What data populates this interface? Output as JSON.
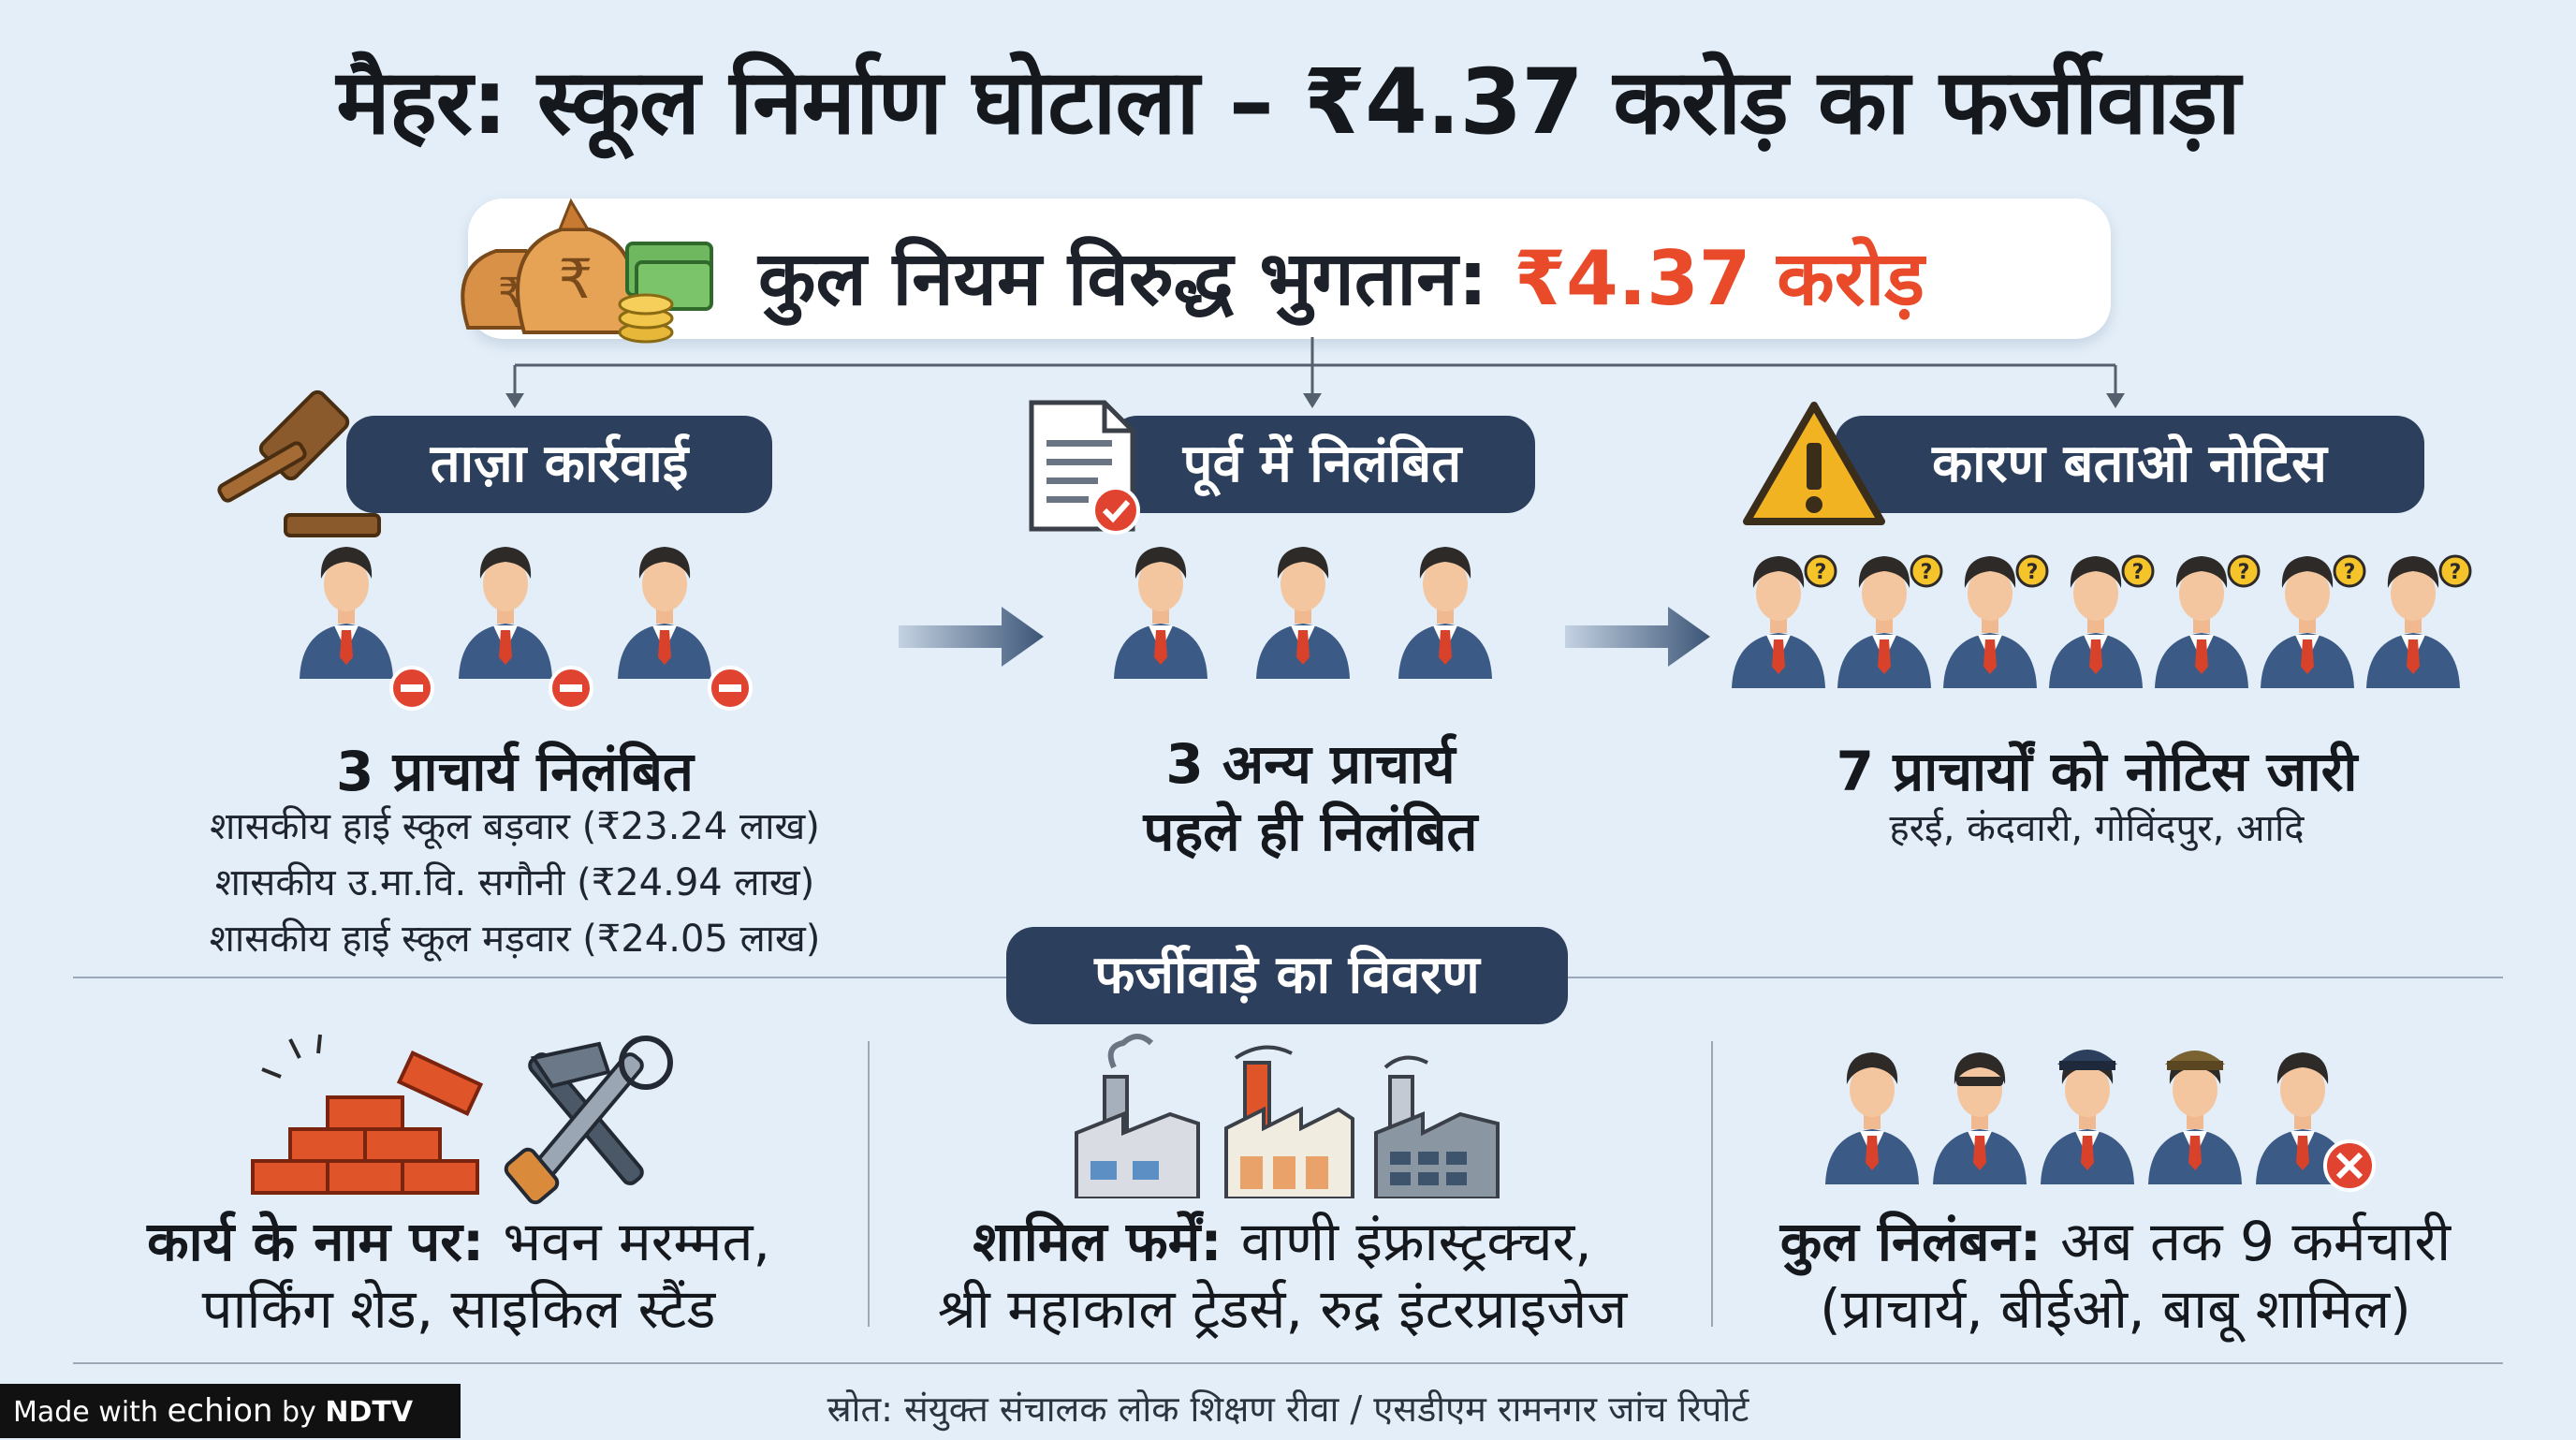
{
  "title": "मैहर: स्कूल निर्माण घोटाला – ₹4.37 करोड़ का फर्जीवाड़ा",
  "total": {
    "label": "कुल नियम विरुद्ध भुगतान:",
    "amount": "₹4.37 करोड़"
  },
  "sections": [
    {
      "heading": "ताज़ा कार्रवाई",
      "headline": "3 प्राचार्य निलंबित",
      "lines": [
        "शासकीय हाई स्कूल बड़वार (₹23.24 लाख)",
        "शासकीय उ.मा.वि. सगौनी (₹24.94 लाख)",
        "शासकीय हाई स्कूल मड़वार (₹24.05 लाख)"
      ]
    },
    {
      "heading": "पूर्व में निलंबित",
      "headline_lines": [
        "3 अन्य प्राचार्य",
        "पहले ही निलंबित"
      ]
    },
    {
      "heading": "कारण बताओ नोटिस",
      "headline": "7 प्राचार्यों को नोटिस जारी",
      "subline": "हरई, कंदवारी, गोविंदपुर, आदि"
    }
  ],
  "details": {
    "heading": "फर्जीवाड़े का विवरण",
    "work": {
      "label": "कार्य के नाम पर:",
      "text1": "भवन मरम्मत,",
      "text2": "पार्किंग शेड, साइकिल स्टैंड"
    },
    "firms": {
      "label": "शामिल फर्में:",
      "text1": "वाणी इंफ्रास्ट्रक्चर,",
      "text2": "श्री महाकाल ट्रेडर्स, रुद्र इंटरप्राइजेज"
    },
    "suspension": {
      "label": "कुल निलंबन:",
      "text1": "अब तक 9 कर्मचारी",
      "text2": "(प्राचार्य, बीईओ, बाबू शामिल)"
    }
  },
  "source": "स्रोत: संयुक्त संचालक लोक शिक्षण रीवा / एसडीएम रामनगर जांच रिपोर्ट",
  "badge": {
    "prefix": "Made with",
    "brand": "echion",
    "by": "by",
    "org": "NDTV"
  },
  "icons": [
    "money-bags-icon",
    "gavel-icon",
    "document-check-icon",
    "warning-icon",
    "arrow-right-icon",
    "person-minus-icon",
    "person-question-icon",
    "bricks-icon",
    "tools-icon",
    "factory-icon",
    "staff-group-icon"
  ],
  "colors": {
    "accent": "#e84a2a",
    "pill": "#2c3f5c",
    "background": "#e3eef8"
  }
}
